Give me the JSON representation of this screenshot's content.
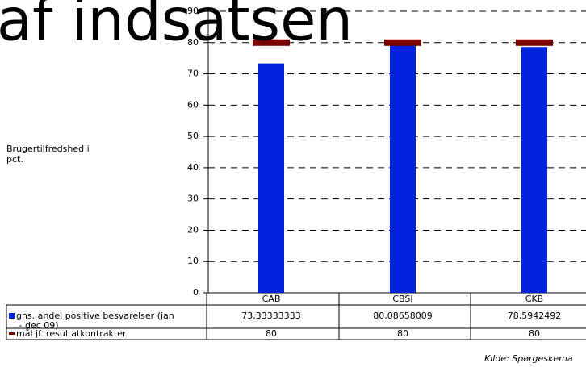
{
  "chart_data": {
    "type": "bar",
    "title": "af indsatsen",
    "y_label": "Brugertilfredshed i pct.",
    "source": "Kilde: Spørgeskema",
    "categories": [
      "CAB",
      "CBSI",
      "CKB"
    ],
    "series": [
      {
        "name": "gns. andel positive besvarelser (jan - dec 09)",
        "color": "#0022dd",
        "style": "bar",
        "values": [
          73.33333333,
          80.08658009,
          78.5942492
        ],
        "value_labels": [
          "73,33333333",
          "80,08658009",
          "78,5942492"
        ]
      },
      {
        "name": "mål jf. resultatkontrakter",
        "color": "#7a0000",
        "style": "marker",
        "values": [
          80,
          80,
          80
        ]
      }
    ],
    "ylim": [
      0,
      90
    ],
    "yticks": [
      0,
      10,
      20,
      30,
      40,
      50,
      60,
      70,
      80,
      90
    ],
    "grid": true
  }
}
